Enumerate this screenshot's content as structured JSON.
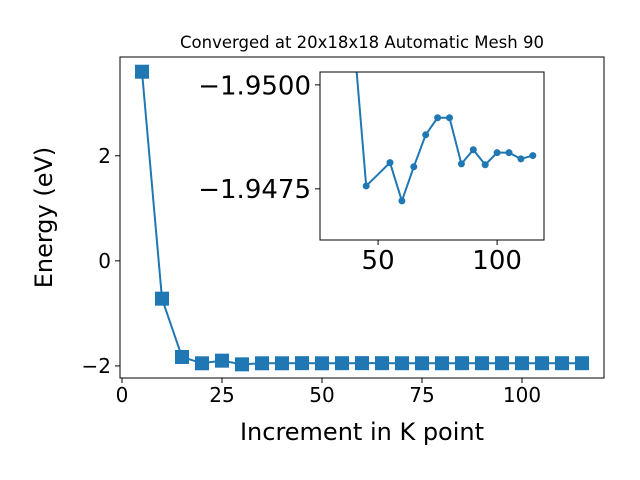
{
  "chart_data": [
    {
      "type": "line",
      "title": "Converged at 20x18x18 Automatic Mesh 90",
      "x_label": "Increment in K point",
      "y_label": "Energy (eV)",
      "x": [
        5,
        10,
        15,
        20,
        25,
        30,
        35,
        40,
        45,
        50,
        55,
        60,
        65,
        70,
        75,
        80,
        85,
        90,
        95,
        100,
        105,
        110,
        115
      ],
      "series": [
        {
          "color": "#1f77b4",
          "marker": "square",
          "values": [
            3.6,
            -0.72,
            -1.83,
            -1.95,
            -1.9,
            -1.97,
            -1.95,
            -1.95,
            -1.94757,
            -1.95,
            -1.94813,
            -1.94721,
            -1.94803,
            -1.9488,
            -1.94921,
            -1.94921,
            -1.9481,
            -1.94844,
            -1.94808,
            -1.94837,
            -1.94837,
            -1.94822,
            -1.9483
          ]
        }
      ],
      "xlim": [
        -0.5,
        120.5
      ],
      "ylim": [
        -2.23,
        3.88
      ],
      "xticks": [
        0,
        25,
        50,
        75,
        100
      ],
      "yticks": [
        {
          "value": -2,
          "label": "−2"
        },
        0,
        2
      ]
    },
    {
      "type": "line",
      "x": [
        40,
        45,
        55,
        60,
        65,
        70,
        75,
        80,
        85,
        90,
        95,
        100,
        105,
        110,
        115
      ],
      "series": [
        {
          "color": "#1f77b4",
          "marker": "circle",
          "values": [
            -1.951,
            -1.94757,
            -1.94813,
            -1.94721,
            -1.94803,
            -1.9488,
            -1.94921,
            -1.94921,
            -1.9481,
            -1.94844,
            -1.94808,
            -1.94837,
            -1.94837,
            -1.94822,
            -1.9483
          ]
        }
      ],
      "xlim": [
        25.6,
        119.7
      ],
      "ylim": [
        -1.94627,
        -1.95031
      ],
      "xticks": [
        50,
        100
      ],
      "yticks": [
        {
          "value": -1.95,
          "label": "−1.9500"
        },
        {
          "value": -1.9475,
          "label": "−1.9475"
        }
      ]
    }
  ]
}
